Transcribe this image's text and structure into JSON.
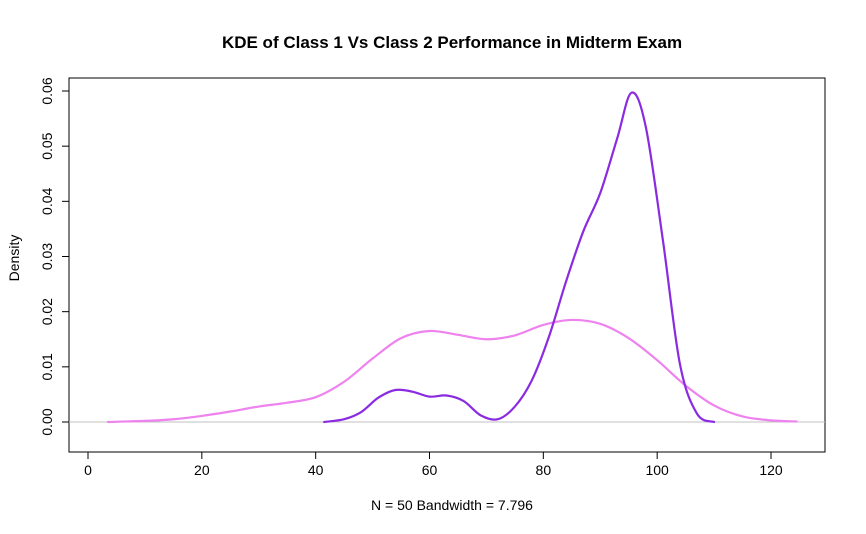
{
  "chart_data": {
    "type": "line",
    "title": "KDE of Class 1 Vs Class 2 Performance in Midterm Exam",
    "xlabel": "N = 50   Bandwidth = 7.796",
    "ylabel": "Density",
    "xlim": [
      0,
      128
    ],
    "ylim": [
      0,
      0.06
    ],
    "x_ticks": [
      "0",
      "20",
      "40",
      "60",
      "80",
      "100",
      "120"
    ],
    "y_ticks": [
      "0.00",
      "0.01",
      "0.02",
      "0.03",
      "0.04",
      "0.05",
      "0.06"
    ],
    "baseline_color": "#c0c0c0",
    "series": [
      {
        "color": "#ee82ee",
        "x": [
          3.5,
          10,
          15,
          20,
          25,
          30,
          35,
          40,
          45,
          50,
          55,
          60,
          65,
          70,
          75,
          80,
          85,
          90,
          95,
          100,
          105,
          110,
          115,
          120,
          124.5
        ],
        "y": [
          0.0,
          0.0002,
          0.0005,
          0.0011,
          0.0019,
          0.0028,
          0.0035,
          0.0045,
          0.0073,
          0.0115,
          0.0152,
          0.0165,
          0.0158,
          0.015,
          0.0157,
          0.0176,
          0.0185,
          0.0178,
          0.0152,
          0.0112,
          0.0066,
          0.003,
          0.001,
          0.0003,
          0.0001
        ]
      },
      {
        "color": "#8a2be2",
        "x": [
          41.5,
          45,
          48,
          51,
          54,
          57,
          60,
          63,
          66,
          69,
          72,
          75,
          78,
          81,
          84,
          87,
          90,
          93,
          95.5,
          98,
          101,
          104,
          107,
          110
        ],
        "y": [
          0.0,
          0.0005,
          0.0018,
          0.0044,
          0.0058,
          0.0055,
          0.0046,
          0.0048,
          0.0038,
          0.0012,
          0.0005,
          0.0028,
          0.0076,
          0.0155,
          0.0255,
          0.0345,
          0.0415,
          0.0515,
          0.0597,
          0.0535,
          0.033,
          0.0105,
          0.0015,
          0.0
        ]
      }
    ],
    "grid": false,
    "legend": "none"
  }
}
